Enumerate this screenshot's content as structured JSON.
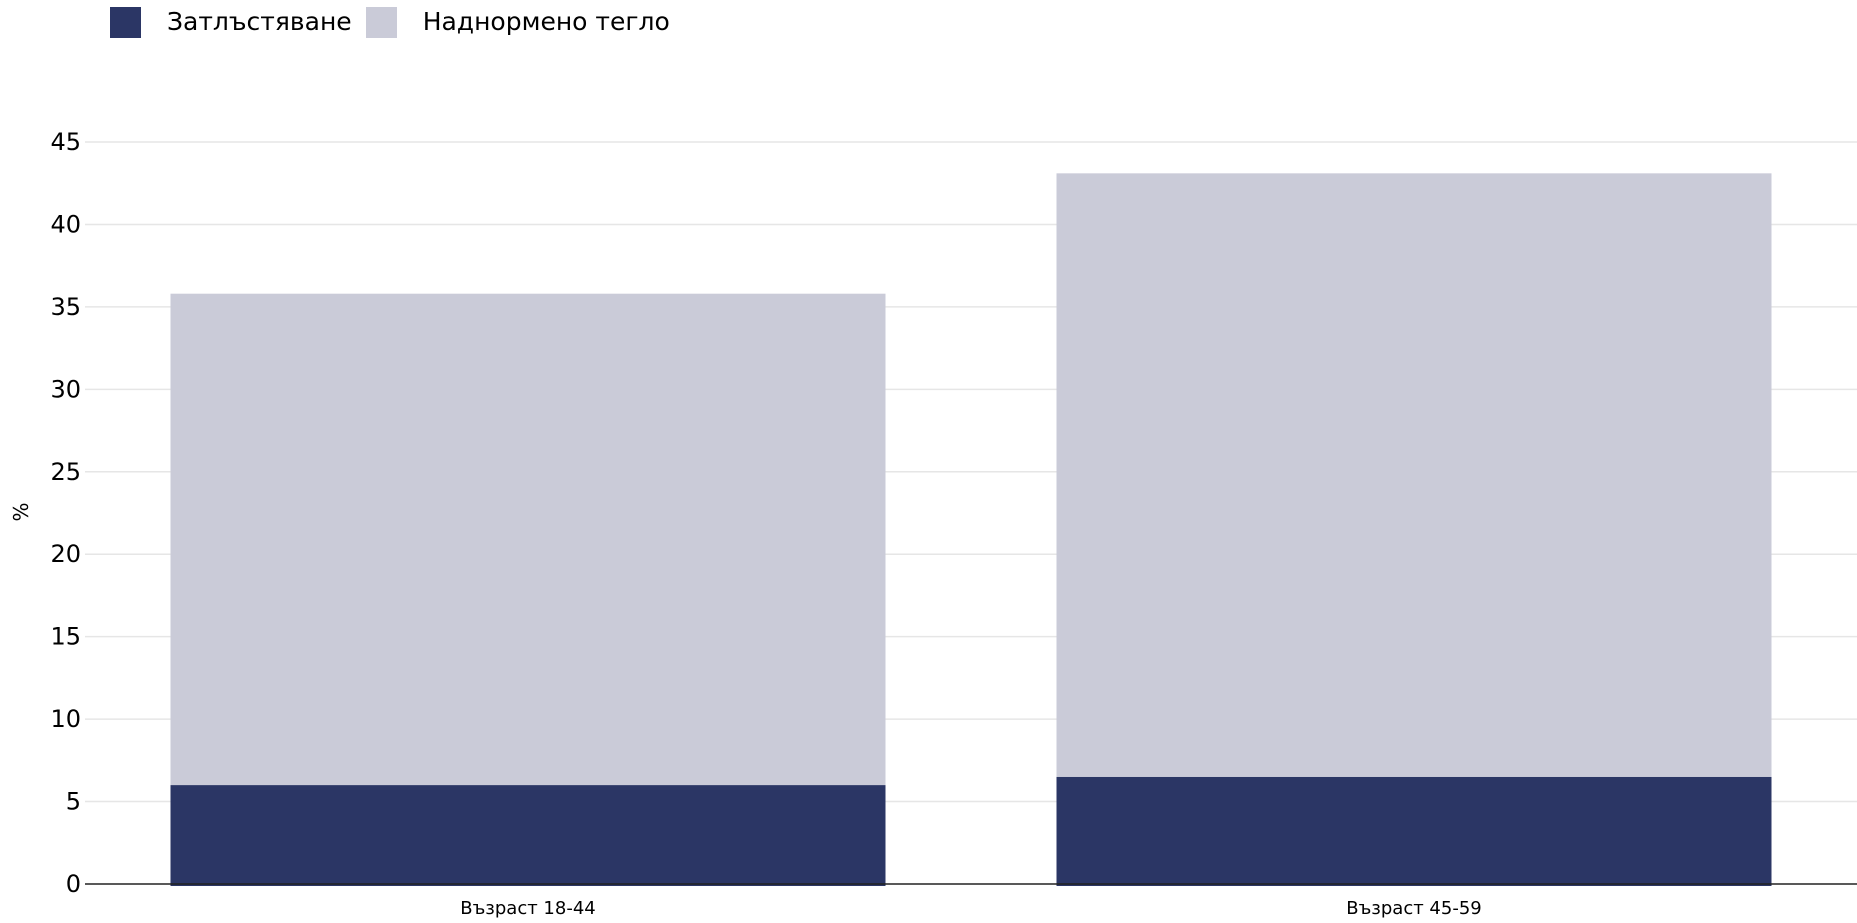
{
  "chart_data": {
    "type": "bar",
    "stacked": true,
    "categories": [
      "Възраст 18-44",
      "Възраст 45-59"
    ],
    "series": [
      {
        "name": "Затлъстяване",
        "values": [
          6.0,
          6.5
        ],
        "color": "#2b3665"
      },
      {
        "name": "Наднормено тегло",
        "values": [
          29.8,
          36.6
        ],
        "color": "#cacbd8"
      }
    ],
    "xlabel": "",
    "ylabel": "%",
    "ylim": [
      0,
      45
    ],
    "yticks": [
      0,
      5,
      10,
      15,
      20,
      25,
      30,
      35,
      40,
      45
    ],
    "grid": true,
    "legend_position": "top-left"
  }
}
